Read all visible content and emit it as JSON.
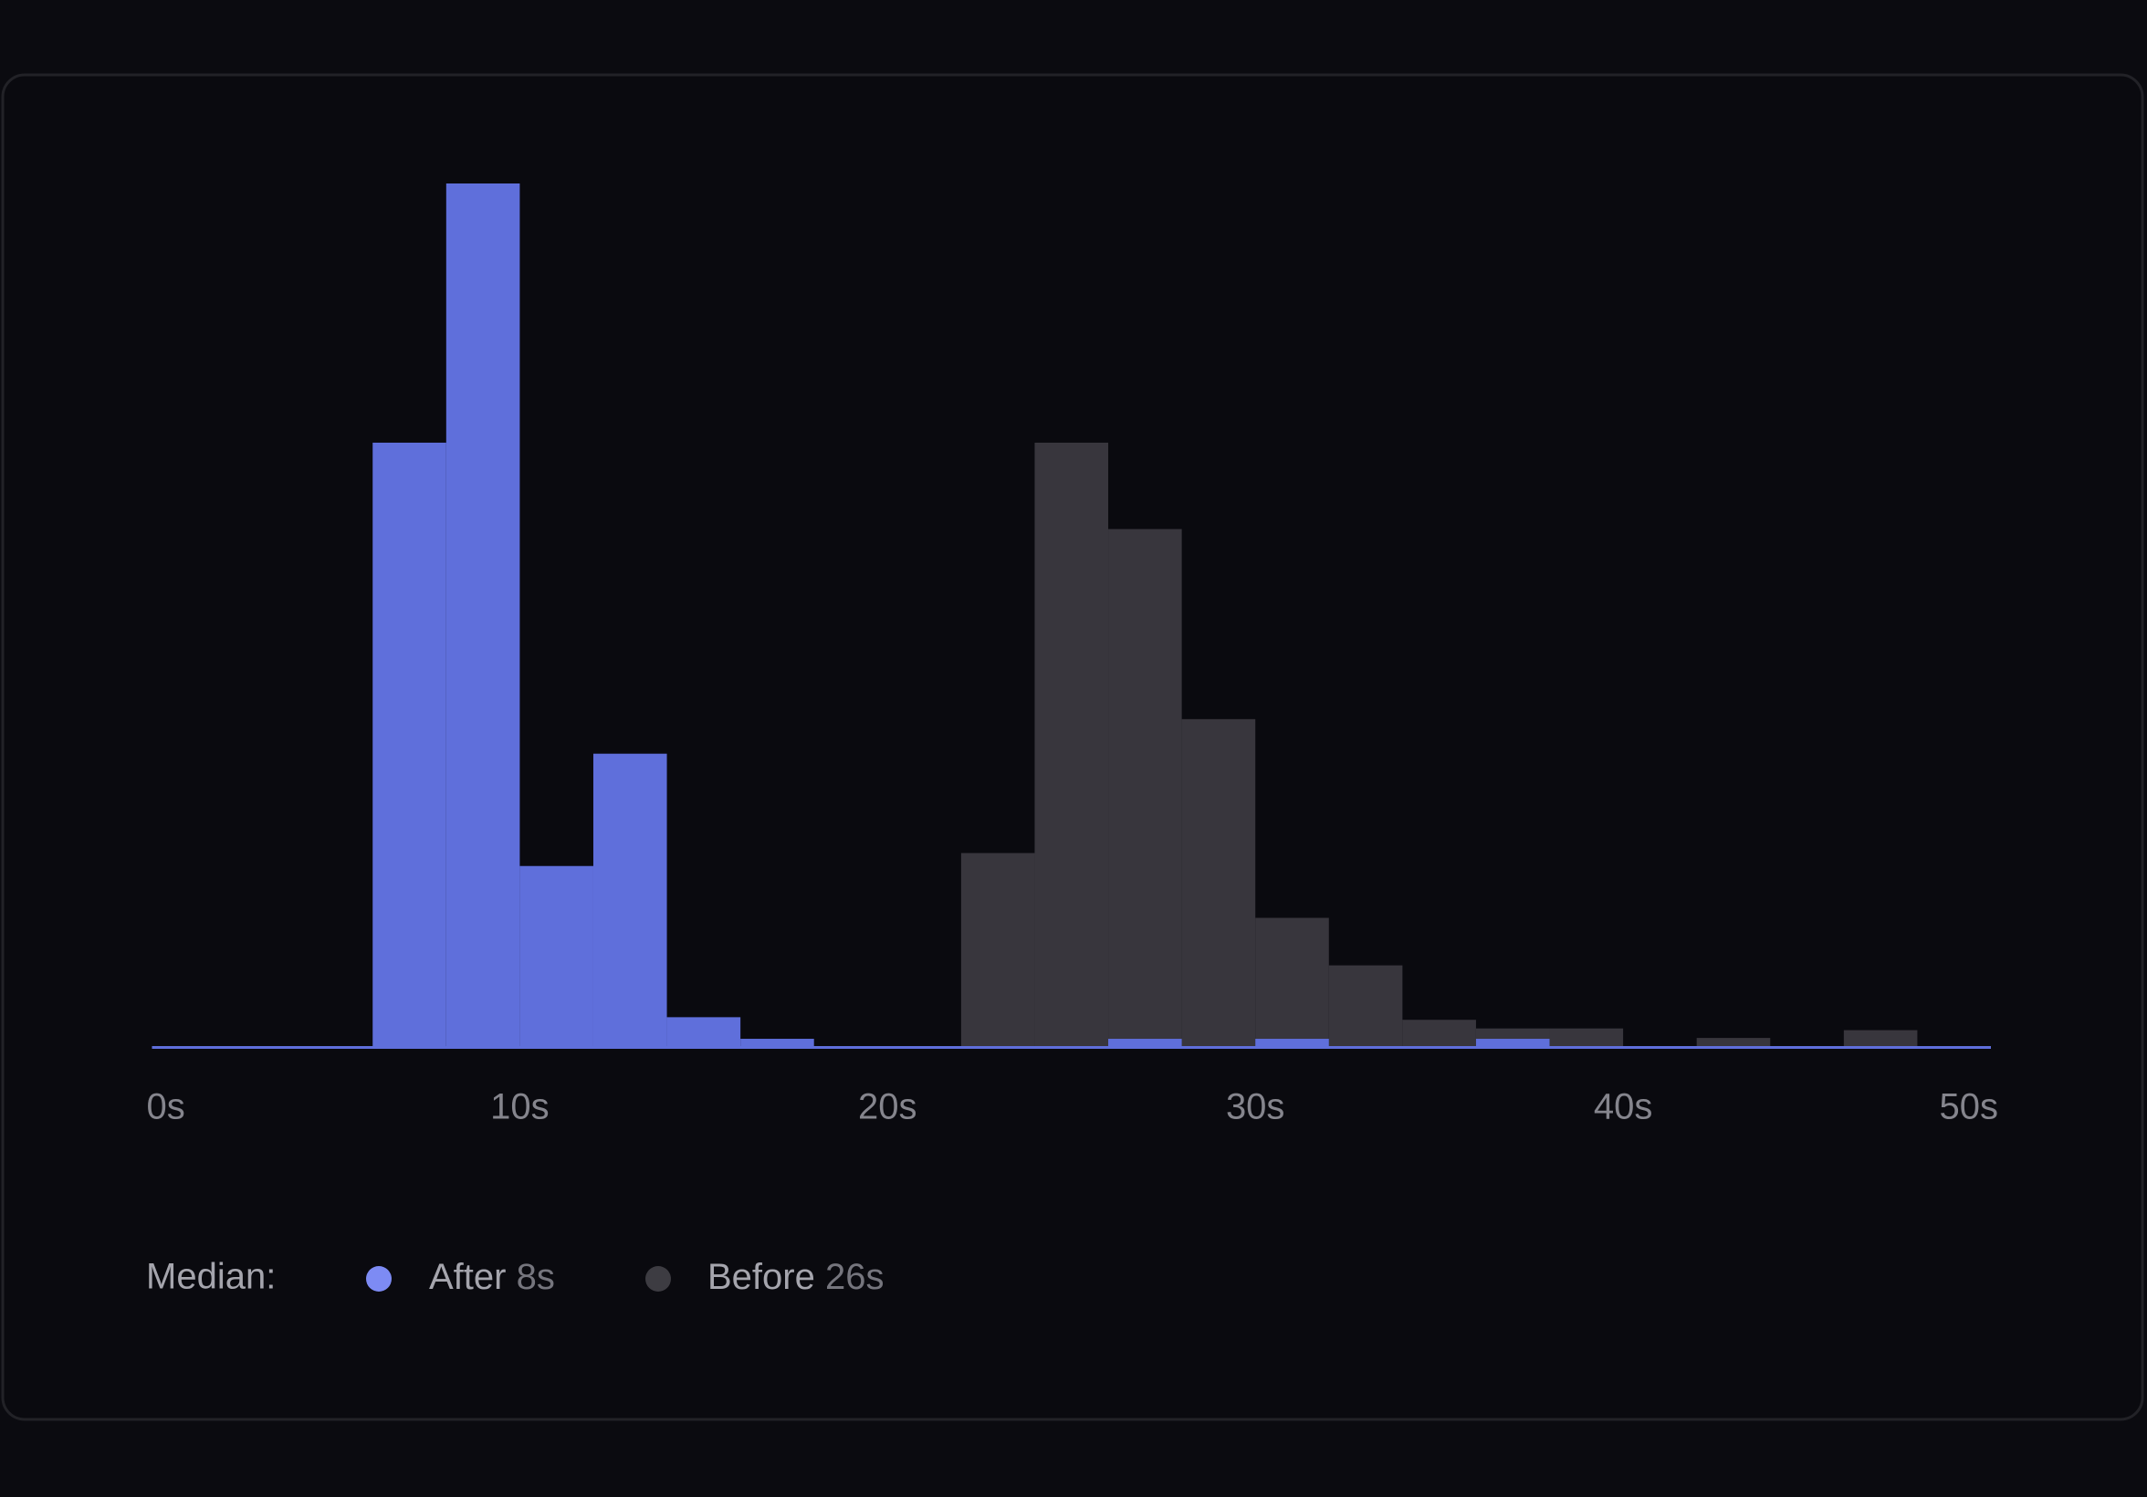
{
  "chart_data": {
    "type": "histogram",
    "bins": [
      0,
      2,
      4,
      6,
      8,
      10,
      12,
      14,
      16,
      18,
      20,
      22,
      24,
      26,
      28,
      30,
      32,
      34,
      36,
      38,
      40,
      42,
      44,
      46,
      48,
      50
    ],
    "series": [
      {
        "name": "Before",
        "color": "#38363d",
        "median": "26s",
        "values": [
          0,
          0,
          0,
          0,
          0,
          0,
          0,
          0,
          0,
          0,
          0,
          22.5,
          70,
          60,
          38,
          15,
          9.5,
          3.2,
          2.2,
          2.2,
          0,
          1.1,
          0,
          2,
          0
        ]
      },
      {
        "name": "After",
        "color": "#5f6fdb",
        "median": "8s",
        "values": [
          0,
          0,
          0,
          70,
          100,
          21,
          34,
          3.5,
          1,
          0,
          0,
          0,
          0,
          1,
          0,
          1,
          0,
          0,
          1,
          0,
          0,
          0,
          0,
          0,
          0
        ]
      }
    ],
    "legend_title": "Median:",
    "xlim": [
      0,
      50
    ],
    "xticks": [
      {
        "value": 0,
        "label": "0s"
      },
      {
        "value": 10,
        "label": "10s"
      },
      {
        "value": 20,
        "label": "20s"
      },
      {
        "value": 30,
        "label": "30s"
      },
      {
        "value": 40,
        "label": "40s"
      },
      {
        "value": 50,
        "label": "50s"
      }
    ],
    "ylim": [
      0,
      100
    ]
  }
}
